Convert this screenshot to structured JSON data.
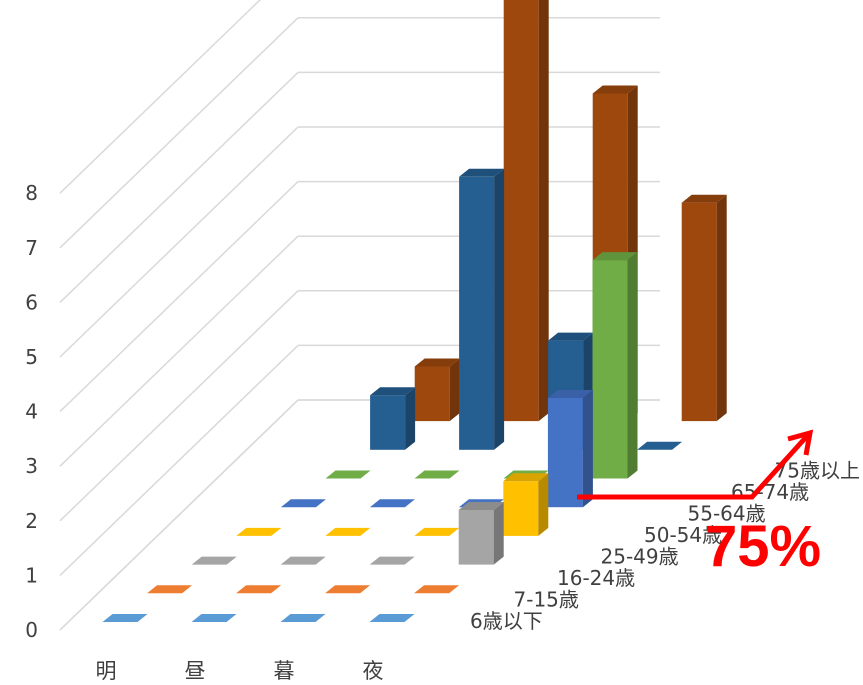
{
  "chart_data": {
    "type": "bar",
    "categories": [
      "明",
      "昼",
      "暮",
      "夜"
    ],
    "series": [
      {
        "name": "6歳以下",
        "values": [
          0,
          0,
          0,
          0
        ],
        "color": "#5b9bd5"
      },
      {
        "name": "7-15歳",
        "values": [
          0,
          0,
          0,
          0
        ],
        "color": "#ed7d31"
      },
      {
        "name": "16-24歳",
        "values": [
          0,
          0,
          0,
          1
        ],
        "color": "#a5a5a5"
      },
      {
        "name": "25-49歳",
        "values": [
          0,
          0,
          0,
          1
        ],
        "color": "#ffc000"
      },
      {
        "name": "50-54歳",
        "values": [
          0,
          0,
          0,
          2
        ],
        "color": "#4472c4"
      },
      {
        "name": "55-64歳",
        "values": [
          0,
          0,
          0,
          4
        ],
        "color": "#70ad47"
      },
      {
        "name": "65-74歳",
        "values": [
          1,
          5,
          2,
          0
        ],
        "color": "#255e91"
      },
      {
        "name": "75歳以上",
        "values": [
          1,
          8,
          6,
          4
        ],
        "color": "#9e480e"
      }
    ],
    "yticks": [
      "0",
      "1",
      "2",
      "3",
      "4",
      "5",
      "6",
      "7",
      "8"
    ],
    "ylim": [
      0,
      8
    ],
    "grid": true,
    "annotation": {
      "text": "75%",
      "color": "#ff0000"
    }
  }
}
